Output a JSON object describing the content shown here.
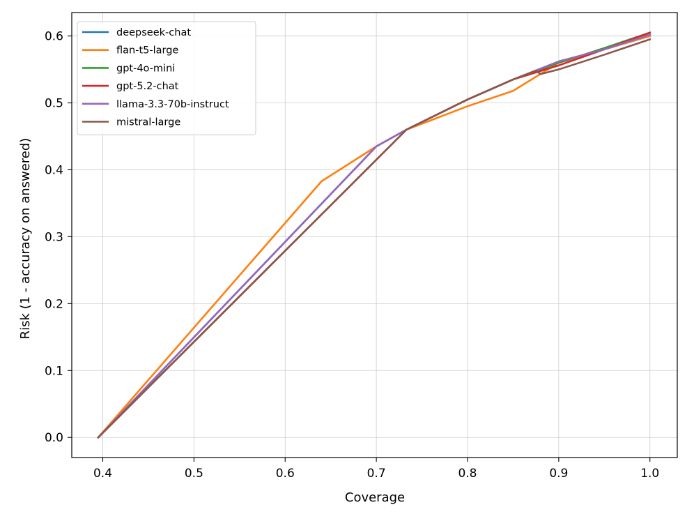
{
  "chart_data": {
    "type": "line",
    "title": "",
    "xlabel": "Coverage",
    "ylabel": "Risk (1 - accuracy on answered)",
    "xlim": [
      0.366,
      1.03
    ],
    "ylim": [
      -0.03,
      0.635
    ],
    "xticks": [
      0.4,
      0.5,
      0.6,
      0.7,
      0.8,
      0.9,
      1.0
    ],
    "xtick_labels": [
      "0.4",
      "0.5",
      "0.6",
      "0.7",
      "0.8",
      "0.9",
      "1.0"
    ],
    "yticks": [
      0.0,
      0.1,
      0.2,
      0.3,
      0.4,
      0.5,
      0.6
    ],
    "ytick_labels": [
      "0.0",
      "0.1",
      "0.2",
      "0.3",
      "0.4",
      "0.5",
      "0.6"
    ],
    "grid": true,
    "legend_position": "top-left",
    "series": [
      {
        "name": "deepseek-chat",
        "color": "#1f77b4",
        "points": [
          [
            0.395,
            0.0
          ],
          [
            0.7,
            0.435
          ],
          [
            0.733,
            0.46
          ],
          [
            0.8,
            0.505
          ],
          [
            0.85,
            0.535
          ],
          [
            0.9,
            0.56
          ],
          [
            0.95,
            0.58
          ],
          [
            1.0,
            0.6
          ]
        ]
      },
      {
        "name": "flan-t5-large",
        "color": "#ff7f0e",
        "points": [
          [
            0.395,
            0.0
          ],
          [
            0.64,
            0.383
          ],
          [
            0.7,
            0.435
          ],
          [
            0.733,
            0.46
          ],
          [
            0.8,
            0.495
          ],
          [
            0.85,
            0.518
          ],
          [
            0.9,
            0.56
          ],
          [
            0.95,
            0.58
          ],
          [
            1.0,
            0.6
          ]
        ]
      },
      {
        "name": "gpt-4o-mini",
        "color": "#2ca02c",
        "points": [
          [
            0.395,
            0.0
          ],
          [
            0.733,
            0.46
          ],
          [
            0.8,
            0.505
          ],
          [
            0.85,
            0.535
          ],
          [
            0.9,
            0.56
          ],
          [
            0.95,
            0.582
          ],
          [
            1.0,
            0.605
          ]
        ]
      },
      {
        "name": "gpt-5.2-chat",
        "color": "#d62728",
        "points": [
          [
            0.395,
            0.0
          ],
          [
            0.733,
            0.46
          ],
          [
            0.8,
            0.505
          ],
          [
            0.85,
            0.535
          ],
          [
            0.9,
            0.556
          ],
          [
            0.95,
            0.58
          ],
          [
            1.0,
            0.605
          ]
        ]
      },
      {
        "name": "llama-3.3-70b-instruct",
        "color": "#9467bd",
        "points": [
          [
            0.395,
            0.0
          ],
          [
            0.7,
            0.435
          ],
          [
            0.733,
            0.46
          ],
          [
            0.8,
            0.505
          ],
          [
            0.85,
            0.535
          ],
          [
            0.9,
            0.562
          ],
          [
            0.95,
            0.58
          ],
          [
            1.0,
            0.602
          ]
        ]
      },
      {
        "name": "mistral-large",
        "color": "#8c564b",
        "points": [
          [
            0.395,
            0.0
          ],
          [
            0.733,
            0.46
          ],
          [
            0.8,
            0.505
          ],
          [
            0.85,
            0.535
          ],
          [
            0.875,
            0.548
          ],
          [
            0.88,
            0.543
          ],
          [
            0.9,
            0.55
          ],
          [
            0.95,
            0.572
          ],
          [
            1.0,
            0.595
          ]
        ]
      }
    ]
  }
}
